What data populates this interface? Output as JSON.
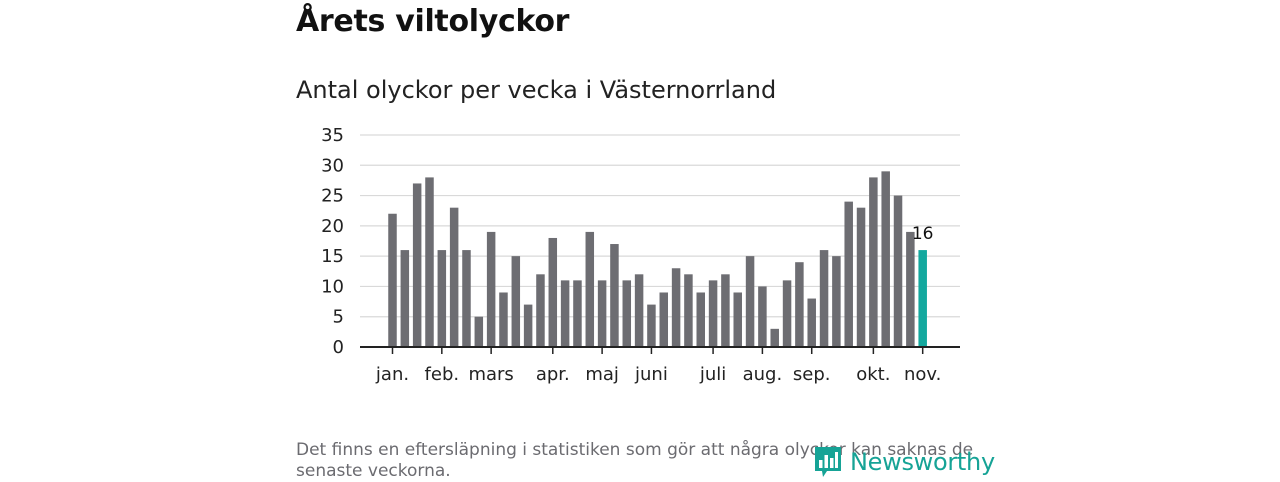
{
  "header": {
    "title": "Årets viltolyckor",
    "subtitle": "Antal olyckor per vecka i Västernorrland"
  },
  "footnote": "Det finns en eftersläpning i statistiken som gör att några olyckor kan saknas de senaste veckorna.",
  "logo": {
    "text": "Newsworthy",
    "icon": "newsworthy-bar-chart-icon"
  },
  "colors": {
    "bar": "#6d6d72",
    "highlight": "#13a89e",
    "grid": "#d9d9d9",
    "axis": "#222222",
    "logo": "#16a396"
  },
  "chart_data": {
    "type": "bar",
    "title": "Antal olyckor per vecka i Västernorrland",
    "xlabel": "",
    "ylabel": "",
    "ylim": [
      0,
      35
    ],
    "yticks": [
      0,
      5,
      10,
      15,
      20,
      25,
      30,
      35
    ],
    "grid": true,
    "weeks": [
      1,
      2,
      3,
      4,
      5,
      6,
      7,
      8,
      9,
      10,
      11,
      12,
      13,
      14,
      15,
      16,
      17,
      18,
      19,
      20,
      21,
      22,
      23,
      24,
      25,
      26,
      27,
      28,
      29,
      30,
      31,
      32,
      33,
      34,
      35,
      36,
      37,
      38,
      39,
      40,
      41,
      42,
      43,
      44
    ],
    "values": [
      22,
      16,
      27,
      28,
      16,
      23,
      16,
      5,
      19,
      9,
      15,
      7,
      12,
      18,
      11,
      11,
      19,
      11,
      17,
      11,
      12,
      7,
      9,
      13,
      12,
      9,
      11,
      12,
      9,
      15,
      10,
      3,
      11,
      14,
      8,
      16,
      15,
      24,
      23,
      28,
      29,
      25,
      19,
      16
    ],
    "highlight_index": 43,
    "annotation": {
      "index": 43,
      "label": "16"
    },
    "month_ticks": [
      {
        "label": "jan.",
        "week": 1
      },
      {
        "label": "feb.",
        "week": 5
      },
      {
        "label": "mars",
        "week": 9
      },
      {
        "label": "apr.",
        "week": 14
      },
      {
        "label": "maj",
        "week": 18
      },
      {
        "label": "juni",
        "week": 22
      },
      {
        "label": "juli",
        "week": 27
      },
      {
        "label": "aug.",
        "week": 31
      },
      {
        "label": "sep.",
        "week": 35
      },
      {
        "label": "okt.",
        "week": 40
      },
      {
        "label": "nov.",
        "week": 44
      }
    ]
  }
}
